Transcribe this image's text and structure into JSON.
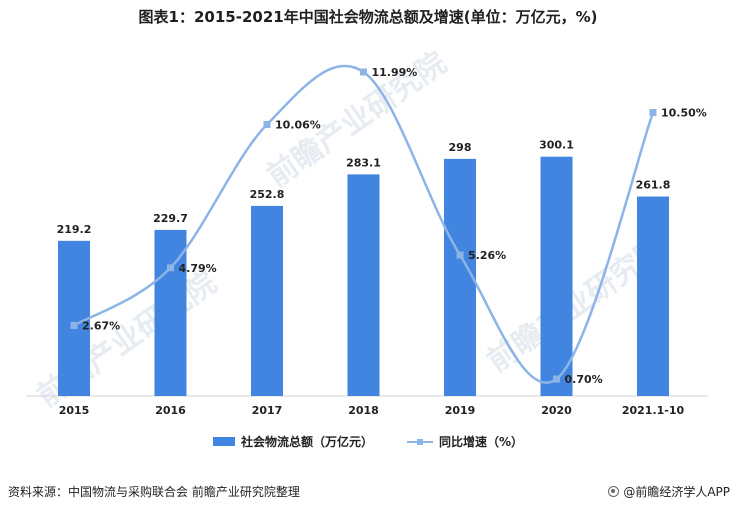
{
  "title": "图表1：2015-2021年中国社会物流总额及增速(单位：万亿元，%)",
  "source": "资料来源：中国物流与采购联合会 前瞻产业研究院整理",
  "brand": "@前瞻经济学人APP",
  "watermark": "前瞻产业研究院",
  "colors": {
    "bar": "#4285e0",
    "line": "#8db4e6"
  },
  "legend": {
    "bar_label": "社会物流总额（万亿元）",
    "line_label": "同比增速（%）"
  },
  "chart_data": {
    "type": "bar",
    "categories": [
      "2015",
      "2016",
      "2017",
      "2018",
      "2019",
      "2020",
      "2021.1-10"
    ],
    "series": [
      {
        "name": "社会物流总额（万亿元）",
        "type": "bar",
        "values": [
          219.2,
          229.7,
          252.8,
          283.1,
          298,
          300.1,
          261.8
        ],
        "labels": [
          "219.2",
          "229.7",
          "252.8",
          "283.1",
          "298",
          "300.1",
          "261.8"
        ]
      },
      {
        "name": "同比增速（%）",
        "type": "line",
        "smooth": true,
        "values": [
          2.67,
          4.79,
          10.06,
          11.99,
          5.26,
          0.7,
          10.5
        ],
        "labels": [
          "2.67%",
          "4.79%",
          "10.06%",
          "11.99%",
          "5.26%",
          "0.70%",
          "10.50%"
        ]
      }
    ],
    "grid": false
  }
}
